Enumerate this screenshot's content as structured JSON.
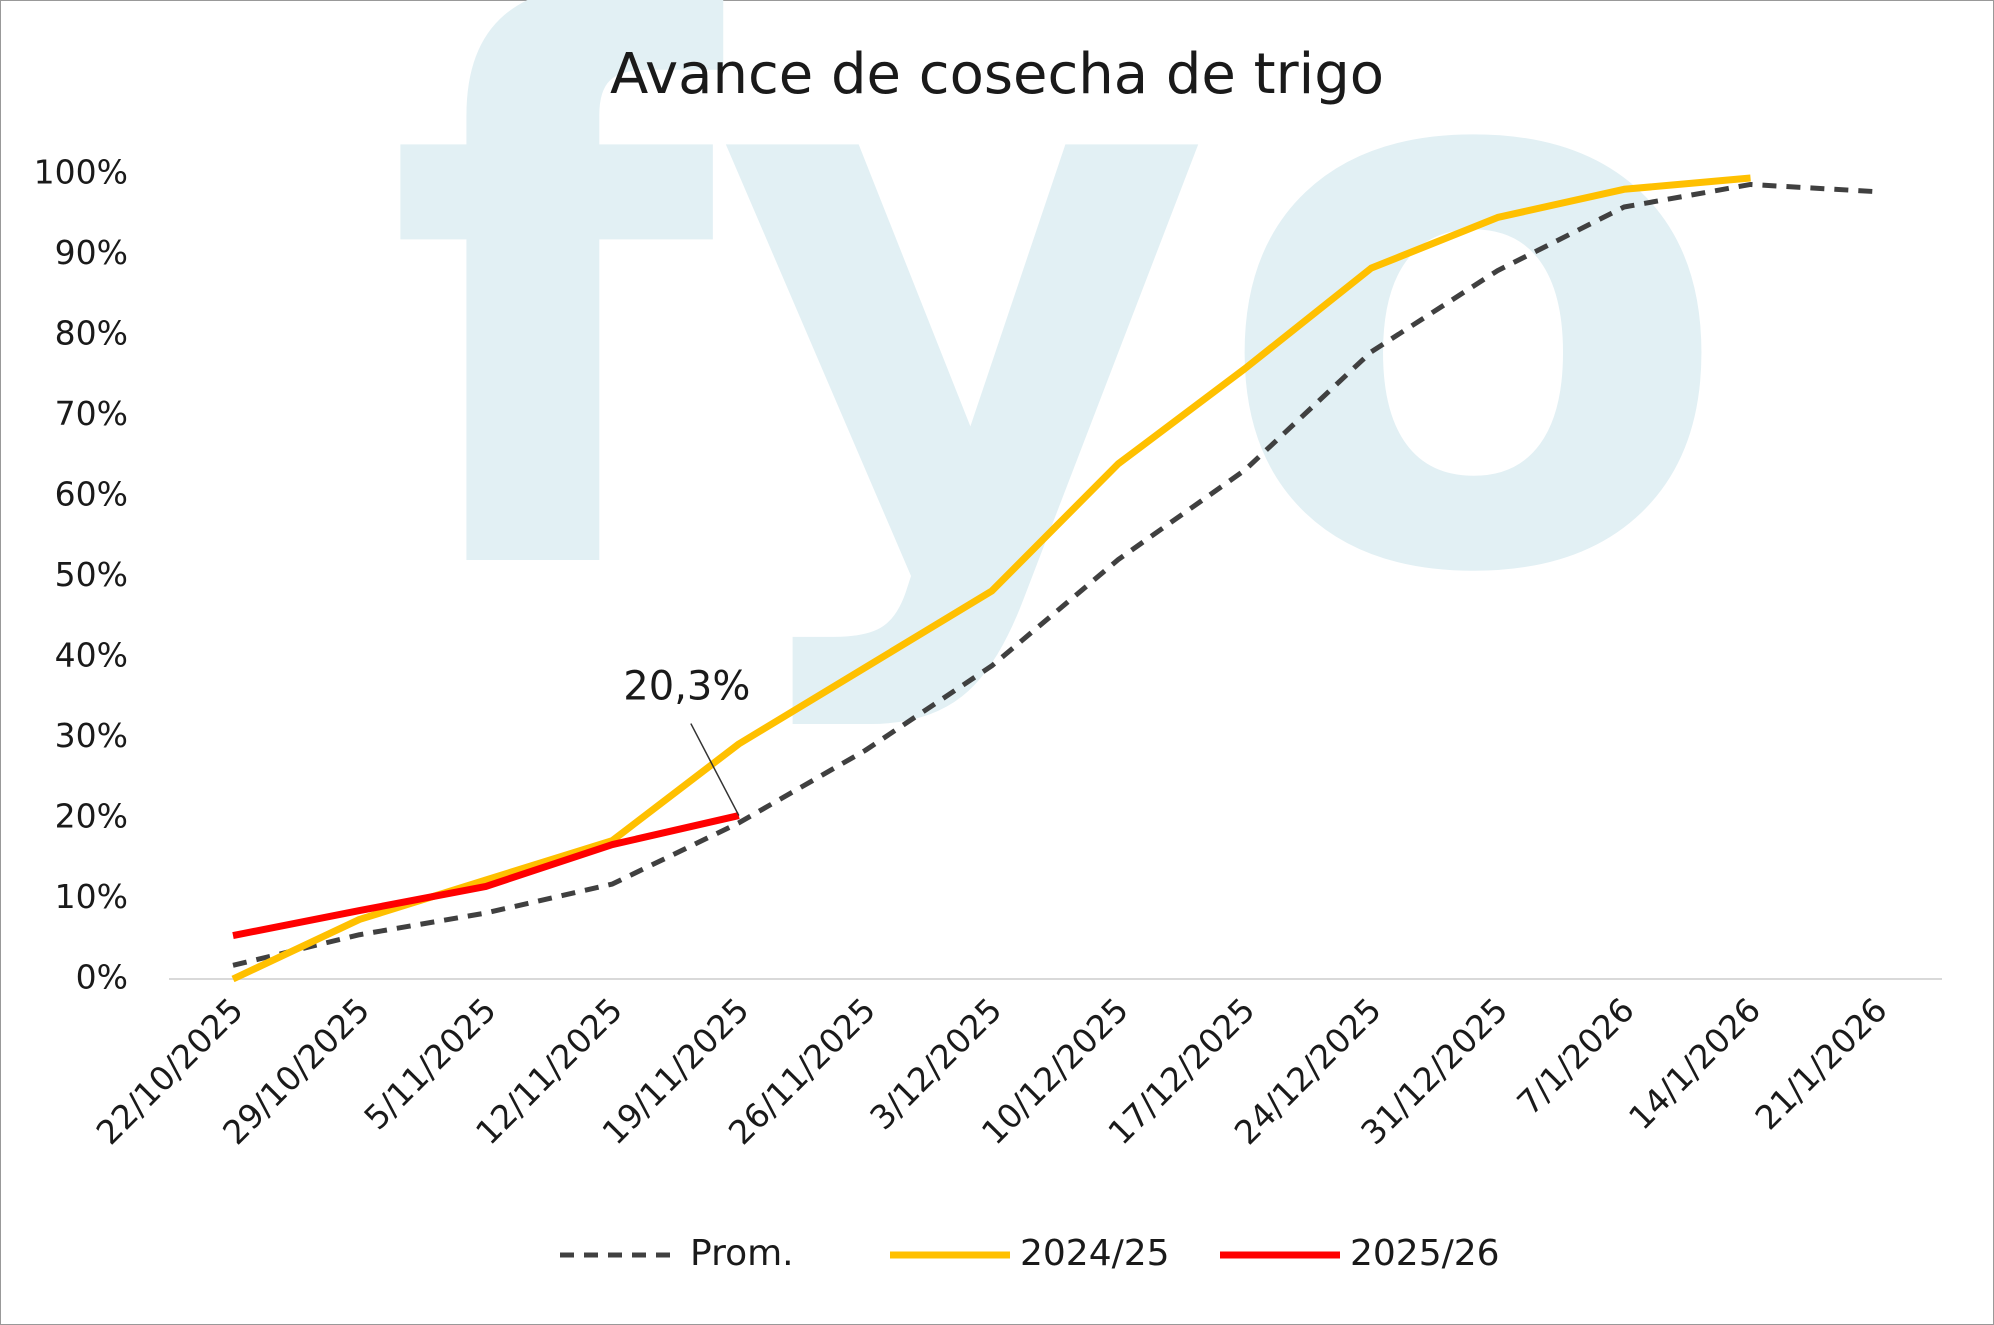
{
  "chart_data": {
    "type": "line",
    "title": "Avance de cosecha de trigo",
    "watermark": "fyo",
    "categories": [
      "22/10/2025",
      "29/10/2025",
      "5/11/2025",
      "12/11/2025",
      "19/11/2025",
      "26/11/2025",
      "3/12/2025",
      "10/12/2025",
      "17/12/2025",
      "24/12/2025",
      "31/12/2025",
      "7/1/2026",
      "14/1/2026",
      "21/1/2026"
    ],
    "series": [
      {
        "name": "Prom.",
        "color": "#404040",
        "dashed": true,
        "values": [
          1.7,
          5.5,
          8.2,
          11.8,
          19.4,
          28.4,
          38.9,
          52.1,
          63.2,
          77.9,
          88.0,
          95.9,
          98.7,
          97.8
        ]
      },
      {
        "name": "2024/25",
        "color": "#FFC000",
        "dashed": false,
        "values": [
          0,
          7.4,
          12.3,
          17.2,
          29.2,
          38.7,
          48.2,
          64.0,
          75.8,
          88.3,
          94.6,
          98.1,
          99.5,
          null
        ]
      },
      {
        "name": "2025/26",
        "color": "#FF0000",
        "dashed": false,
        "values": [
          5.4,
          8.5,
          11.5,
          16.7,
          20.3,
          null,
          null,
          null,
          null,
          null,
          null,
          null,
          null,
          null
        ]
      }
    ],
    "annotations": [
      {
        "text": "20,3%",
        "series": 2,
        "index": 4
      }
    ],
    "ylim": [
      0,
      100
    ],
    "yticks": [
      {
        "value": 0,
        "label": "0%"
      },
      {
        "value": 10,
        "label": "10%"
      },
      {
        "value": 20,
        "label": "20%"
      },
      {
        "value": 30,
        "label": "30%"
      },
      {
        "value": 40,
        "label": "40%"
      },
      {
        "value": 50,
        "label": "50%"
      },
      {
        "value": 60,
        "label": "60%"
      },
      {
        "value": 70,
        "label": "70%"
      },
      {
        "value": 80,
        "label": "80%"
      },
      {
        "value": 90,
        "label": "90%"
      },
      {
        "value": 100,
        "label": "100%"
      }
    ],
    "grid": false,
    "legend": "bottom"
  }
}
